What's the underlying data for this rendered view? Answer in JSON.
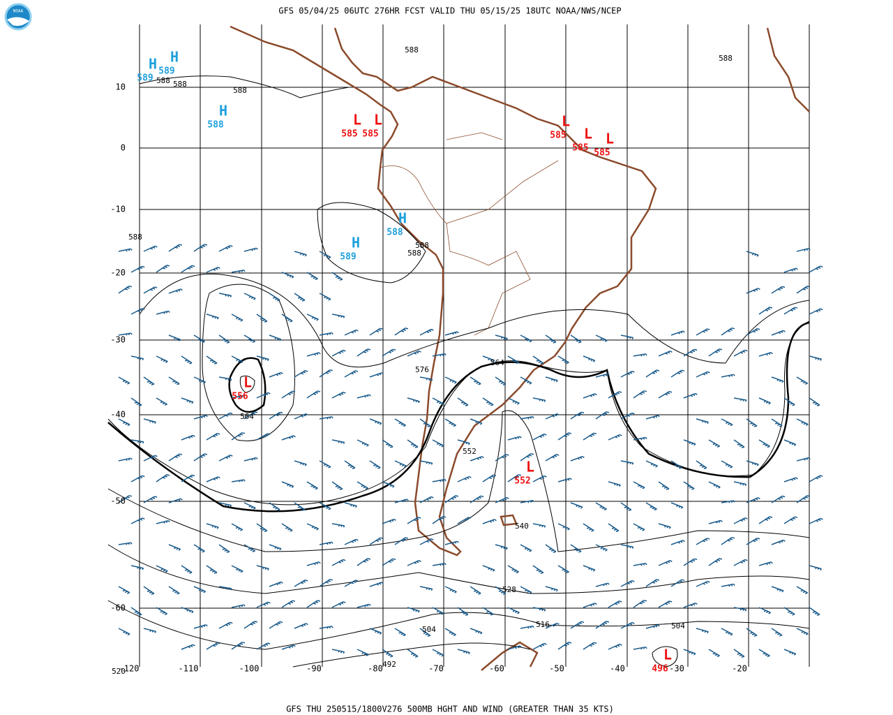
{
  "header": "GFS 05/04/25 06UTC 276HR FCST VALID THU 05/15/25 18UTC NOAA/NWS/NCEP",
  "footer": "GFS THU 250515/1800V276 500MB HGHT AND WIND (GREATER THAN 35 KTS)",
  "logo": "NOAA",
  "lat_labels": [
    "10",
    "0",
    "-10",
    "-20",
    "-30",
    "-40",
    "-50",
    "-60"
  ],
  "lon_labels": [
    "-120",
    "-110",
    "-100",
    "-90",
    "-80",
    "-70",
    "-60",
    "-50",
    "-40",
    "-30",
    "-20"
  ],
  "centers": [
    {
      "letter": "H",
      "value": "589"
    },
    {
      "letter": "H",
      "value": "589"
    },
    {
      "letter": "H",
      "value": "588"
    },
    {
      "letter": "L",
      "value": "585"
    },
    {
      "letter": "L",
      "value": "585"
    },
    {
      "letter": "L",
      "value": "585"
    },
    {
      "letter": "L",
      "value": "585"
    },
    {
      "letter": "L",
      "value": "585"
    },
    {
      "letter": "H",
      "value": "588"
    },
    {
      "letter": "H",
      "value": "589"
    },
    {
      "letter": "L",
      "value": "556"
    },
    {
      "letter": "L",
      "value": "552"
    },
    {
      "letter": "L",
      "value": "496"
    }
  ],
  "contour_labels": [
    "588",
    "588",
    "588",
    "588",
    "588",
    "588",
    "588",
    "588",
    "576",
    "564",
    "564",
    "552",
    "540",
    "528",
    "516",
    "504",
    "504",
    "492",
    "520"
  ]
}
